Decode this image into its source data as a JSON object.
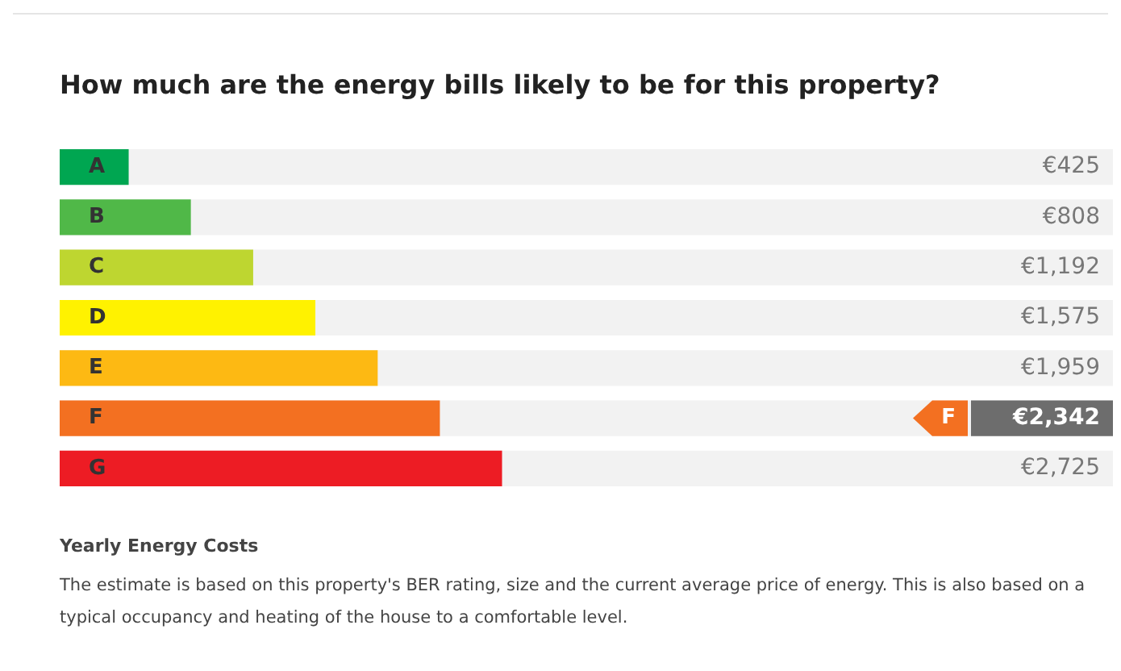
{
  "chart_data": {
    "type": "bar",
    "orientation": "horizontal",
    "title": "How much are the energy bills likely to be for this property?",
    "categories": [
      "A",
      "B",
      "C",
      "D",
      "E",
      "F",
      "G"
    ],
    "values": [
      425,
      808,
      1192,
      1575,
      1959,
      2342,
      2725
    ],
    "colors": [
      "#00a651",
      "#50b848",
      "#bed630",
      "#fff200",
      "#fdb913",
      "#f37021",
      "#ed1c24"
    ],
    "value_labels": [
      "€425",
      "€808",
      "€1,192",
      "€1,575",
      "€1,959",
      "€2,342",
      "€2,725"
    ],
    "annotations": [
      "F",
      "Yearly Energy Costs",
      "The estimate is based on this property's BER rating, size and the current average price of energy. This is also based on a typical occupancy and heating of the house to a comfortable level."
    ],
    "legend": false
  }
}
